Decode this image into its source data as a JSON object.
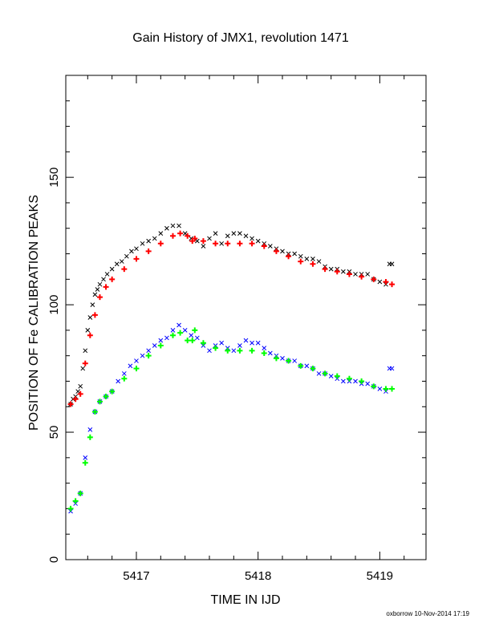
{
  "chart_data": {
    "type": "scatter",
    "title": "Gain History of JMX1, revolution 1471",
    "xlabel": "TIME IN IJD",
    "ylabel": "POSITION OF Fe CALIBRATION PEAKS",
    "xlim": [
      5416.42,
      5419.38
    ],
    "ylim": [
      0,
      190
    ],
    "xticks": [
      5417,
      5418,
      5419
    ],
    "yticks": [
      0,
      50,
      100,
      150
    ],
    "grid": false,
    "series": [
      {
        "marker": "x",
        "color": "#000000",
        "x": [
          5416.46,
          5416.48,
          5416.5,
          5416.52,
          5416.54,
          5416.56,
          5416.58,
          5416.6,
          5416.62,
          5416.64,
          5416.66,
          5416.68,
          5416.7,
          5416.73,
          5416.76,
          5416.8,
          5416.84,
          5416.88,
          5416.92,
          5416.96,
          5417.0,
          5417.05,
          5417.1,
          5417.15,
          5417.2,
          5417.25,
          5417.3,
          5417.35,
          5417.4,
          5417.45,
          5417.5,
          5417.55,
          5417.6,
          5417.65,
          5417.7,
          5417.75,
          5417.8,
          5417.85,
          5417.9,
          5417.95,
          5418.0,
          5418.05,
          5418.1,
          5418.15,
          5418.2,
          5418.25,
          5418.3,
          5418.35,
          5418.4,
          5418.45,
          5418.5,
          5418.55,
          5418.6,
          5418.65,
          5418.7,
          5418.75,
          5418.8,
          5418.85,
          5418.9,
          5418.95,
          5419.0,
          5419.05,
          5419.08,
          5419.1
        ],
        "y": [
          61,
          63,
          64,
          66,
          68,
          75,
          82,
          90,
          95,
          100,
          104,
          106,
          108,
          110,
          112,
          114,
          116,
          117,
          119,
          121,
          122,
          124,
          125,
          126,
          128,
          130,
          131,
          131,
          128,
          126,
          125,
          123,
          126,
          128,
          124,
          127,
          128,
          128,
          127,
          126,
          125,
          124,
          123,
          122,
          121,
          120,
          120,
          119,
          118,
          118,
          117,
          115,
          114,
          114,
          113,
          113,
          112,
          112,
          112,
          110,
          109,
          108,
          116,
          116
        ]
      },
      {
        "marker": "+",
        "color": "#ff0000",
        "x": [
          5416.46,
          5416.5,
          5416.54,
          5416.58,
          5416.62,
          5416.66,
          5416.7,
          5416.75,
          5416.8,
          5416.9,
          5417.0,
          5417.1,
          5417.2,
          5417.3,
          5417.36,
          5417.42,
          5417.46,
          5417.48,
          5417.55,
          5417.65,
          5417.75,
          5417.85,
          5417.95,
          5418.05,
          5418.15,
          5418.25,
          5418.35,
          5418.45,
          5418.55,
          5418.65,
          5418.75,
          5418.85,
          5418.95,
          5419.05,
          5419.1
        ],
        "y": [
          61,
          63,
          65,
          77,
          88,
          96,
          103,
          107,
          110,
          114,
          118,
          121,
          124,
          127,
          128,
          127,
          125,
          126,
          125,
          124,
          124,
          124,
          124,
          123,
          121,
          119,
          117,
          116,
          114,
          113,
          112,
          111,
          110,
          109,
          108
        ]
      },
      {
        "marker": "x",
        "color": "#0000ff",
        "x": [
          5416.46,
          5416.5,
          5416.54,
          5416.58,
          5416.62,
          5416.66,
          5416.7,
          5416.75,
          5416.8,
          5416.85,
          5416.9,
          5416.95,
          5417.0,
          5417.05,
          5417.1,
          5417.15,
          5417.2,
          5417.25,
          5417.3,
          5417.35,
          5417.4,
          5417.45,
          5417.5,
          5417.55,
          5417.6,
          5417.65,
          5417.7,
          5417.75,
          5417.8,
          5417.85,
          5417.9,
          5417.95,
          5418.0,
          5418.05,
          5418.1,
          5418.15,
          5418.2,
          5418.25,
          5418.3,
          5418.35,
          5418.4,
          5418.45,
          5418.5,
          5418.55,
          5418.6,
          5418.65,
          5418.7,
          5418.75,
          5418.8,
          5418.85,
          5418.9,
          5418.95,
          5419.0,
          5419.05,
          5419.08,
          5419.1
        ],
        "y": [
          19,
          22,
          26,
          40,
          51,
          58,
          62,
          64,
          66,
          70,
          73,
          76,
          78,
          80,
          82,
          84,
          86,
          87,
          90,
          92,
          90,
          88,
          87,
          84,
          82,
          84,
          85,
          83,
          82,
          84,
          86,
          85,
          85,
          83,
          81,
          80,
          79,
          78,
          78,
          76,
          76,
          75,
          73,
          73,
          72,
          71,
          70,
          70,
          70,
          69,
          69,
          68,
          67,
          66,
          75,
          75
        ]
      },
      {
        "marker": "+",
        "color": "#00ff00",
        "x": [
          5416.46,
          5416.5,
          5416.54,
          5416.58,
          5416.62,
          5416.66,
          5416.7,
          5416.75,
          5416.8,
          5416.9,
          5417.0,
          5417.1,
          5417.2,
          5417.3,
          5417.36,
          5417.42,
          5417.46,
          5417.48,
          5417.55,
          5417.65,
          5417.75,
          5417.85,
          5417.95,
          5418.05,
          5418.15,
          5418.25,
          5418.35,
          5418.45,
          5418.55,
          5418.65,
          5418.75,
          5418.85,
          5418.95,
          5419.05,
          5419.1
        ],
        "y": [
          20,
          23,
          26,
          38,
          48,
          58,
          62,
          64,
          66,
          71,
          75,
          80,
          84,
          88,
          89,
          86,
          86,
          90,
          85,
          83,
          82,
          82,
          82,
          81,
          79,
          78,
          76,
          75,
          73,
          72,
          71,
          70,
          68,
          67,
          67
        ]
      }
    ]
  },
  "footer": "oxborrow 10-Nov-2014 17:19"
}
